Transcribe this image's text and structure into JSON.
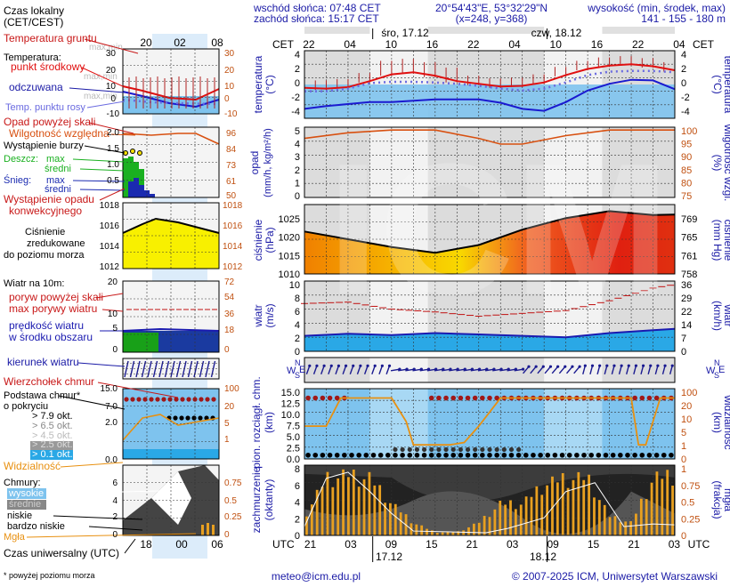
{
  "header": {
    "sunrise": "wschód słońca: 07:48 CET",
    "sunset": "zachód słońca: 15:17 CET",
    "coords": "20°54'43\"E, 53°32'29\"N",
    "grid": "(x=248, y=368)",
    "altitude_title": "wysokość (min, środek, max)",
    "altitude_values": "141 - 155 - 180 m"
  },
  "legend": {
    "local_time": "Czas lokalny",
    "local_time_sub": "(CET/CEST)",
    "local_ticks": [
      "20",
      "02",
      "08"
    ],
    "ground_temp": "Temperatura gruntu",
    "ground_temp_sub": "max,min",
    "temperature": "Temperatura:",
    "temp_mid": "punkt środkowy",
    "temp_mid_sub": "max,min",
    "temp_felt": "odczuwana",
    "temp_felt_sub": "max,min",
    "dew_point": "Temp. punktu rosy",
    "precip_over_scale": "Opad powyżej skali",
    "humidity": "Wilgotność względna",
    "storm": "Wystąpienie burzy",
    "rain": "Deszcz:",
    "rain_max": "max",
    "rain_mean": "średni",
    "snow": "Śnieg:",
    "snow_max": "max",
    "snow_mean": "średni",
    "convective": "Wystąpienie opadu",
    "convective_sub": "konwekcyjnego",
    "pressure_1": "Ciśnienie",
    "pressure_2": "zredukowane",
    "pressure_3": "do poziomu morza",
    "wind_title": "Wiatr na 10m:",
    "gust_over_scale": "poryw powyżej skali",
    "gust_max": "max porywy wiatru",
    "wind_speed": "prędkość wiatru",
    "wind_speed_sub": "w środku obszaru",
    "wind_dir": "kierunek wiatru",
    "cloud_top": "Wierzchołek chmur",
    "cloud_base": "Podstawa chmur*",
    "cloud_base_sub": "o pokryciu",
    "okt_79": "> 7.9 okt.",
    "okt_65": "> 6.5 okt.",
    "okt_45": "> 4.5 okt.",
    "okt_25": "> 2.5 okt.",
    "okt_01": "> 0.1 okt.",
    "visibility": "Widzialność",
    "clouds": "Chmury:",
    "cl_high": "wysokie",
    "cl_mid": "średnie",
    "cl_low": "niskie",
    "cl_vlow": "bardzo niskie",
    "fog": "Mgła",
    "utc": "Czas uniwersalny (UTC)",
    "utc_ticks": [
      "18",
      "00",
      "06"
    ],
    "footnote": "* powyżej poziomu morza"
  },
  "main": {
    "cet": "CET",
    "utc": "UTC",
    "day1": "śro, 17.12",
    "day2": "czw, 18.12",
    "top_hours": [
      "22",
      "04",
      "10",
      "16",
      "22",
      "04",
      "10",
      "16",
      "22",
      "04"
    ],
    "bottom_hours": [
      "21",
      "03",
      "09",
      "15",
      "21",
      "03",
      "09",
      "15",
      "21",
      "03"
    ],
    "bottom_date1": "17.12",
    "bottom_date2": "18.12",
    "watermark": "ICM"
  },
  "axes": {
    "temp_l": "temperatura",
    "temp_u": "(°C)",
    "precip_l": "opad",
    "precip_u": "(mm/h, kg/m²/h)",
    "hum_l": "wilgotność wzgl.",
    "hum_u": "(%)",
    "press_l": "ciśnienie",
    "press_u": "(hPa)",
    "press_r_u": "(mm Hg)",
    "press_r": "ciśnienie",
    "wind_l": "wiatr",
    "wind_u": "(m/s)",
    "wind_r_u": "(km/h)",
    "wind_r": "wiatr",
    "dir_l": "W",
    "dir_n": "N",
    "dir_s": "S",
    "dir_e": "E",
    "cld_l": "pion. rozciągł. chm.",
    "cld_u": "(km)",
    "vis_l": "widzialność",
    "vis_u": "(km)",
    "cov_l": "zachmurzenie",
    "cov_u": "(oktanty)",
    "fog_l": "mgła",
    "fog_u": "(frakcja)"
  },
  "footer": {
    "email": "meteo@icm.edu.pl",
    "copyright": "© 2007-2025 ICM, Uniwersytet Warszawski"
  },
  "chart_data": [
    {
      "type": "line",
      "panel": "temperature",
      "ylim": [
        -5,
        5
      ],
      "y_ticks_left": [
        "4",
        "2",
        "0",
        "-2",
        "-4"
      ],
      "x": [
        0,
        3,
        6,
        9,
        12,
        15,
        18,
        21,
        24,
        27,
        30,
        33,
        36,
        39,
        42,
        45,
        48,
        51
      ],
      "series": [
        {
          "name": "punkt środkowy",
          "values": [
            -0.5,
            -0.6,
            -0.4,
            0.5,
            1.5,
            1.8,
            1.3,
            0.5,
            0.1,
            -0.3,
            -0.2,
            0.3,
            1.4,
            2.3,
            2.8,
            3.0,
            2.7,
            2.1
          ]
        },
        {
          "name": "odczuwana",
          "values": [
            -3.6,
            -3.2,
            -2.9,
            -2.6,
            -2.6,
            -2.4,
            -2.2,
            -2.2,
            -2.2,
            -2.7,
            -3.6,
            -3.9,
            -2.6,
            -0.9,
            0.1,
            0.7,
            0.6,
            -0.7
          ]
        },
        {
          "name": "Temp. punktu rosy",
          "values": [
            -1.0,
            -1.0,
            -0.6,
            0.2,
            0.4,
            0.4,
            0.3,
            0.1,
            -0.2,
            -0.6,
            -0.9,
            -0.6,
            0.3,
            1.4,
            1.9,
            2.0,
            2.0,
            1.8
          ]
        }
      ]
    },
    {
      "type": "line",
      "panel": "humidity",
      "y_ticks_left": [
        "5",
        "4",
        "3",
        "2",
        "1",
        "0"
      ],
      "y_ticks_right": [
        "100",
        "95",
        "90",
        "85",
        "80",
        "75"
      ],
      "ylim": [
        75,
        100
      ],
      "x": [
        0,
        6,
        12,
        18,
        24,
        27,
        30,
        36,
        42,
        48,
        51
      ],
      "series": [
        {
          "name": "Wilgotność względna",
          "values": [
            96,
            98,
            99,
            99,
            96,
            94,
            94,
            97,
            99,
            99,
            99
          ]
        }
      ]
    },
    {
      "type": "area",
      "panel": "pressure",
      "ylim": [
        1010,
        1028
      ],
      "y_ticks_left": [
        "1025",
        "1020",
        "1015",
        "1010"
      ],
      "y_ticks_right": [
        "769",
        "765",
        "761",
        "758"
      ],
      "x": [
        0,
        6,
        12,
        18,
        24,
        30,
        36,
        42,
        48,
        51
      ],
      "series": [
        {
          "name": "Ciśnienie",
          "values": [
            1021.0,
            1019.0,
            1017.0,
            1015.5,
            1017.5,
            1021.5,
            1024.5,
            1026.3,
            1025.3,
            1025.4
          ]
        }
      ]
    },
    {
      "type": "line",
      "panel": "wind",
      "ylim": [
        0,
        10
      ],
      "y_ticks_left": [
        "10",
        "8",
        "6",
        "4",
        "2",
        "0"
      ],
      "y_ticks_right": [
        "36",
        "29",
        "22",
        "14",
        "7",
        "0"
      ],
      "x": [
        0,
        6,
        12,
        18,
        24,
        30,
        36,
        42,
        48,
        51
      ],
      "series": [
        {
          "name": "max porywy wiatru",
          "values": [
            6.8,
            7.0,
            6.0,
            5.6,
            5.0,
            5.4,
            5.8,
            7.2,
            9.0,
            9.5
          ]
        },
        {
          "name": "prędkość wiatru",
          "values": [
            2.2,
            2.5,
            2.3,
            2.6,
            2.4,
            2.2,
            2.0,
            2.6,
            3.0,
            3.2
          ]
        }
      ]
    },
    {
      "type": "scatter",
      "panel": "clouds",
      "ylim": [
        0,
        15
      ],
      "y_ticks_left": [
        "15.0",
        "12.5",
        "10.0",
        "7.5",
        "5.0",
        "2.5",
        "0.0"
      ],
      "y_ticks_right": [
        "100",
        "20",
        "10",
        "5",
        "1",
        "0"
      ],
      "x": [
        0,
        6,
        12,
        18,
        24,
        30,
        36,
        42,
        48,
        51
      ],
      "series": [
        {
          "name": "Wierzchołek chmur",
          "values": [
            13.0,
            13.0,
            13.0,
            13.0,
            13.0,
            13.0,
            13.0,
            13.0,
            13.0,
            13.0
          ]
        },
        {
          "name": "Podstawa chmur",
          "values": [
            0.7,
            0.7,
            1.6,
            3.5,
            0.8,
            0.7,
            0.8,
            0.8,
            4.5,
            0.7
          ]
        },
        {
          "name": "Widzialność",
          "values": [
            1,
            20,
            20,
            5,
            10,
            20,
            20,
            20,
            1,
            20
          ]
        }
      ]
    },
    {
      "type": "bar",
      "panel": "cover",
      "ylim": [
        0,
        8
      ],
      "y_ticks_left": [
        "8",
        "6",
        "4",
        "2",
        "0"
      ],
      "y_ticks_right": [
        "1",
        "0.75",
        "0.5",
        "0.25",
        "0"
      ],
      "x": [
        0,
        3,
        6,
        9,
        12,
        15,
        18,
        21,
        24,
        27,
        30,
        33,
        36,
        39,
        42,
        45,
        48,
        51
      ],
      "series": [
        {
          "name": "Mgła",
          "values": [
            0.3,
            0.9,
            0.95,
            0.9,
            0.5,
            0.2,
            0.05,
            0.05,
            0.2,
            0.5,
            0.5,
            0.8,
            0.9,
            0.9,
            0.3,
            0.2,
            0.9,
            0.95
          ]
        }
      ]
    }
  ]
}
